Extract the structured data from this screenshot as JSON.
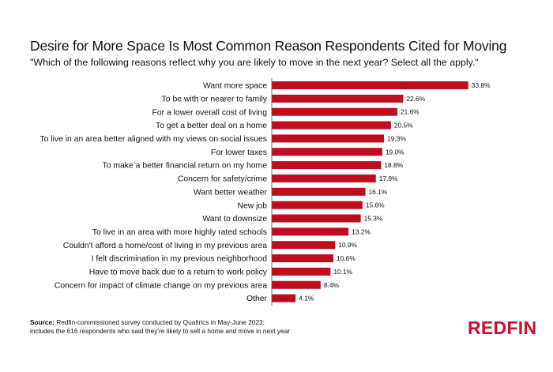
{
  "chart_data": {
    "type": "bar",
    "orientation": "horizontal",
    "title": "Desire for More Space Is Most Common Reason Respondents Cited for Moving",
    "subtitle": "\"Which of the following reasons reflect why you are likely to move in the next year? Select all the apply.\"",
    "categories": [
      "Want more space",
      "To be with or nearer to family",
      "For a lower overall cost of living",
      "To get a better deal on a home",
      "To live in an area better aligned with my views on social issues",
      "For lower taxes",
      "To make a better financial return on my home",
      "Concern for safety/crime",
      "Want better weather",
      "New job",
      "Want to downsize",
      "To live in an area with more highly rated schools",
      "Couldn't afford a home/cost of living in my previous area",
      "I felt discrimination in my previous neighborhood",
      "Have to move back due to a return to work policy",
      "Concern for impact of climate change on my previous area",
      "Other"
    ],
    "values": [
      33.8,
      22.6,
      21.6,
      20.5,
      19.3,
      19.0,
      18.8,
      17.9,
      16.1,
      15.6,
      15.3,
      13.2,
      10.9,
      10.6,
      10.1,
      8.4,
      4.1
    ],
    "value_labels": [
      "33.8%",
      "22.6%",
      "21.6%",
      "20.5%",
      "19.3%",
      "19.0%",
      "18.8%",
      "17.9%",
      "16.1%",
      "15.6%",
      "15.3%",
      "13.2%",
      "10.9%",
      "10.6%",
      "10.1%",
      "8.4%",
      "4.1%"
    ],
    "xlim": [
      0,
      36
    ],
    "xlabel": "",
    "ylabel": "",
    "grid": false,
    "bar_color": "#c00d1e"
  },
  "footnote": {
    "source_label": "Source:",
    "line1": " Redfin-commissioned survey conducted by Qualtrics in May-June 2023;",
    "line2": "includes the 616 respondents who said they're likely to sell a home and move in next year"
  },
  "brand": {
    "logo_text": "REDFIN",
    "color": "#c8102e"
  }
}
